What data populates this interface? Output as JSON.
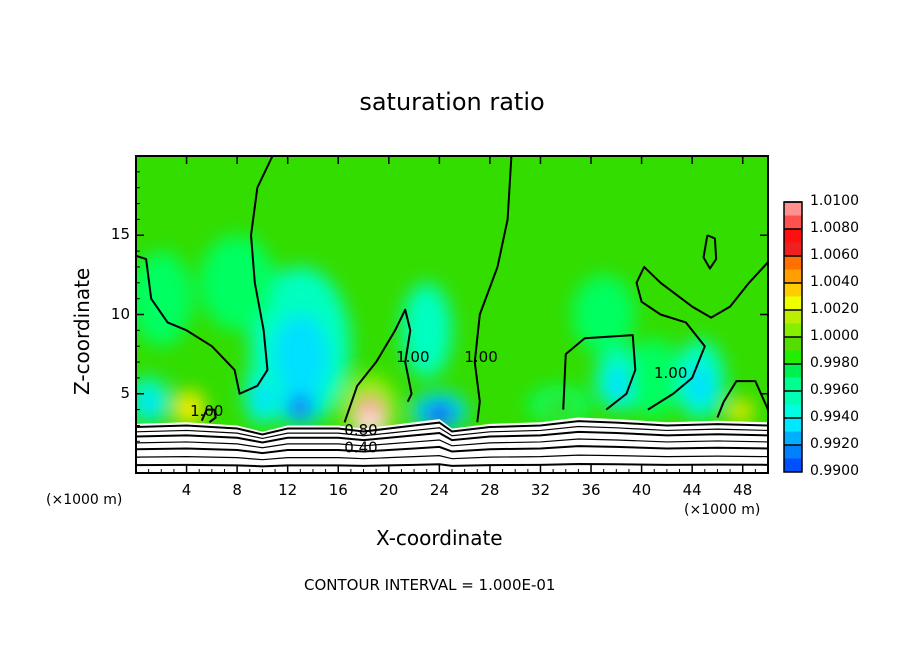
{
  "chart_data": {
    "type": "heatmap",
    "title": "saturation ratio",
    "xlabel": "X-coordinate",
    "ylabel": "Z-coordinate",
    "x_unit_label": "(×1000 m)",
    "x_unit_label_right": "(×1000 m)",
    "xlim": [
      0,
      50
    ],
    "ylim": [
      0,
      20
    ],
    "xticks": [
      4,
      8,
      12,
      16,
      20,
      24,
      28,
      32,
      36,
      40,
      44,
      48
    ],
    "xtick_labels": [
      "4",
      "8",
      "12",
      "16",
      "20",
      "24",
      "28",
      "32",
      "36",
      "40",
      "44",
      "48"
    ],
    "yticks": [
      5,
      10,
      15
    ],
    "ytick_labels": [
      "5",
      "10",
      "15"
    ],
    "footnote": "CONTOUR INTERVAL = 1.000E-01",
    "colorbar": {
      "levels": [
        "1.0100",
        "1.0080",
        "1.0060",
        "1.0040",
        "1.0020",
        "1.0000",
        "0.9980",
        "0.9960",
        "0.9940",
        "0.9920",
        "0.9900"
      ],
      "colors": [
        "#ff8080",
        "#ff1010",
        "#ff7000",
        "#ffee00",
        "#99ee00",
        "#33dd00",
        "#00ff60",
        "#00ffc0",
        "#00e0ff",
        "#0070ff",
        "#1010ee",
        "#5000a0"
      ]
    },
    "background_value": 1.0005,
    "field_anomalies": [
      {
        "x": 13,
        "z": 8,
        "rx": 4,
        "rz": 5,
        "value": 0.9975
      },
      {
        "x": 2,
        "z": 11,
        "rx": 2.5,
        "rz": 3,
        "value": 1.0012
      },
      {
        "x": 8,
        "z": 12,
        "rx": 3,
        "rz": 3,
        "value": 1.0015
      },
      {
        "x": 1,
        "z": 4.6,
        "rx": 1.5,
        "rz": 1.5,
        "value": 0.996
      },
      {
        "x": 4.2,
        "z": 4.3,
        "rx": 1.8,
        "rz": 1.6,
        "value": 1.006
      },
      {
        "x": 10,
        "z": 5,
        "rx": 1.5,
        "rz": 2,
        "value": 0.997
      },
      {
        "x": 13,
        "z": 4.3,
        "rx": 1.5,
        "rz": 1.2,
        "value": 0.993
      },
      {
        "x": 18.5,
        "z": 4.0,
        "rx": 2.2,
        "rz": 2.2,
        "value": 1.0095
      },
      {
        "x": 24,
        "z": 3.9,
        "rx": 2.2,
        "rz": 1.2,
        "value": 0.993
      },
      {
        "x": 23,
        "z": 9,
        "rx": 2,
        "rz": 3,
        "value": 0.9985
      },
      {
        "x": 33.5,
        "z": 4.3,
        "rx": 2.5,
        "rz": 1.2,
        "value": 1.003
      },
      {
        "x": 38.3,
        "z": 5.9,
        "rx": 2,
        "rz": 2,
        "value": 0.9972
      },
      {
        "x": 37,
        "z": 10,
        "rx": 2.5,
        "rz": 2.5,
        "value": 1.0015
      },
      {
        "x": 44.6,
        "z": 5.9,
        "rx": 2,
        "rz": 2.5,
        "value": 0.9972
      },
      {
        "x": 47.8,
        "z": 4,
        "rx": 1.5,
        "rz": 1,
        "value": 1.006
      },
      {
        "x": 41,
        "z": 6,
        "rx": 2,
        "rz": 2.5,
        "value": 1.0018
      }
    ],
    "contours_1_00": [
      [
        [
          10.8,
          20
        ],
        [
          9.6,
          18
        ],
        [
          9.1,
          15
        ],
        [
          9.4,
          12
        ],
        [
          10.1,
          9
        ],
        [
          10.4,
          6.5
        ],
        [
          9.6,
          5.5
        ],
        [
          8.2,
          5
        ],
        [
          7.8,
          6.5
        ],
        [
          6,
          8
        ],
        [
          4,
          9
        ],
        [
          2.5,
          9.5
        ],
        [
          1.2,
          11
        ],
        [
          0.8,
          13.5
        ],
        [
          0,
          13.7
        ]
      ],
      [
        [
          16.5,
          3.2
        ],
        [
          17.5,
          5.5
        ],
        [
          19,
          7
        ],
        [
          20.5,
          9
        ],
        [
          21.3,
          10.3
        ],
        [
          21.7,
          9
        ],
        [
          21.3,
          7
        ],
        [
          21.8,
          5
        ],
        [
          21.5,
          4.5
        ]
      ],
      [
        [
          29.7,
          20
        ],
        [
          29.4,
          16
        ],
        [
          28.6,
          13
        ],
        [
          27.2,
          10
        ],
        [
          26.8,
          7
        ],
        [
          27.2,
          4.5
        ],
        [
          27,
          3.2
        ]
      ],
      [
        [
          50,
          13.3
        ],
        [
          48.5,
          12
        ],
        [
          47,
          10.5
        ],
        [
          45.5,
          9.8
        ],
        [
          44,
          10.5
        ],
        [
          41.5,
          12
        ],
        [
          40.2,
          13
        ],
        [
          39.6,
          12
        ],
        [
          40,
          10.8
        ],
        [
          41.5,
          10
        ],
        [
          43.5,
          9.5
        ],
        [
          45,
          8
        ],
        [
          44,
          6
        ],
        [
          42.5,
          5
        ],
        [
          40.5,
          4
        ]
      ],
      [
        [
          33.8,
          4
        ],
        [
          34,
          7.5
        ],
        [
          35.5,
          8.5
        ],
        [
          39.3,
          8.7
        ],
        [
          39.5,
          6.5
        ],
        [
          38.8,
          5
        ],
        [
          37.2,
          4
        ]
      ],
      [
        [
          50,
          4
        ],
        [
          49,
          5.8
        ],
        [
          47.5,
          5.8
        ],
        [
          46.5,
          4.5
        ],
        [
          46,
          3.5
        ]
      ],
      [
        [
          5.2,
          3.3
        ],
        [
          5.6,
          4
        ],
        [
          6.2,
          4
        ],
        [
          6.3,
          3.5
        ],
        [
          5.8,
          3.2
        ]
      ],
      [
        [
          45.2,
          15
        ],
        [
          45.8,
          14.8
        ],
        [
          45.9,
          13.5
        ],
        [
          45.4,
          12.9
        ],
        [
          44.9,
          13.6
        ],
        [
          45.2,
          15
        ]
      ]
    ],
    "contour_labels": [
      {
        "text": "1.00",
        "x": 5.6,
        "z": 3.6
      },
      {
        "text": "1.00",
        "x": 21.9,
        "z": 7.0
      },
      {
        "text": "1.00",
        "x": 27.3,
        "z": 7.0
      },
      {
        "text": "1.00",
        "x": 42.3,
        "z": 6.0
      },
      {
        "text": "0.80",
        "x": 17.8,
        "z": 2.4
      },
      {
        "text": "0.40",
        "x": 17.8,
        "z": 1.3
      }
    ],
    "terrain_top": [
      [
        0,
        3.1
      ],
      [
        4,
        3.2
      ],
      [
        8,
        3.0
      ],
      [
        10,
        2.6
      ],
      [
        12,
        3.0
      ],
      [
        16,
        3.0
      ],
      [
        18,
        2.8
      ],
      [
        20,
        3.0
      ],
      [
        22,
        3.2
      ],
      [
        24,
        3.4
      ],
      [
        25,
        2.8
      ],
      [
        28,
        3.1
      ],
      [
        32,
        3.2
      ],
      [
        35,
        3.5
      ],
      [
        38,
        3.4
      ],
      [
        42,
        3.2
      ],
      [
        46,
        3.3
      ],
      [
        50,
        3.2
      ]
    ],
    "low_level_contour_heights": [
      2.9,
      2.6,
      2.3,
      1.9,
      1.5,
      1.0,
      0.5
    ]
  }
}
